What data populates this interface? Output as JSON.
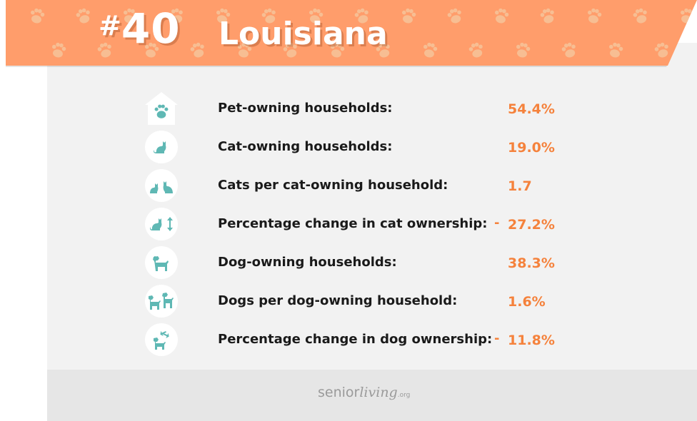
{
  "header": {
    "hash": "#",
    "rank": "40",
    "state": "Louisiana",
    "banner_color": "#ff9d6b",
    "paw_color": "#f7be93"
  },
  "stats": [
    {
      "icon": "house-paw-icon",
      "label": "Pet-owning households:",
      "sign": "",
      "value": "54.4%"
    },
    {
      "icon": "cat-icon",
      "label": "Cat-owning households:",
      "sign": "",
      "value": "19.0%"
    },
    {
      "icon": "two-cats-icon",
      "label": "Cats per cat-owning household:",
      "sign": "",
      "value": "1.7"
    },
    {
      "icon": "cat-change-icon",
      "label": "Percentage change in cat ownership:",
      "sign": "-",
      "value": "27.2%"
    },
    {
      "icon": "dog-icon",
      "label": "Dog-owning households:",
      "sign": "",
      "value": "38.3%"
    },
    {
      "icon": "two-dogs-icon",
      "label": "Dogs per dog-owning household:",
      "sign": "",
      "value": "1.6%"
    },
    {
      "icon": "dog-change-icon",
      "label": "Percentage change in dog ownership:",
      "sign": "-",
      "value": "11.8%"
    }
  ],
  "colors": {
    "accent": "#f5823c",
    "icon_teal": "#5fb8b4"
  },
  "footer": {
    "logo_a": "senior",
    "logo_b": "living",
    "logo_c": ".org"
  }
}
